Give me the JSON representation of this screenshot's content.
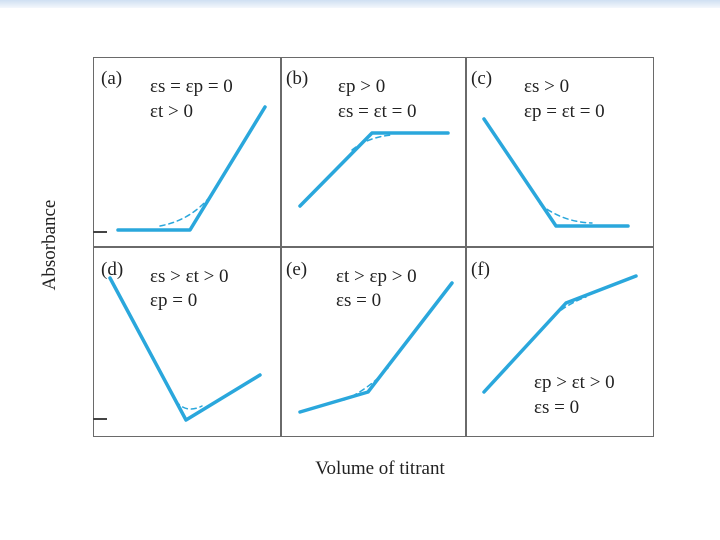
{
  "axes": {
    "ylabel": "Absorbance",
    "xlabel": "Volume of titrant"
  },
  "colors": {
    "curve": "#2aa7dc",
    "frame": "#6a6a6a",
    "top_band": "#cfe0f2"
  },
  "panels": [
    {
      "id": "a",
      "label": "(a)",
      "line1": "εs = εp = 0",
      "line2": "εt > 0"
    },
    {
      "id": "b",
      "label": "(b)",
      "line1": "εp > 0",
      "line2": "εs = εt = 0"
    },
    {
      "id": "c",
      "label": "(c)",
      "line1": "εs > 0",
      "line2": "εp = εt = 0"
    },
    {
      "id": "d",
      "label": "(d)",
      "line1": "εs > εt > 0",
      "line2": "εp = 0"
    },
    {
      "id": "e",
      "label": "(e)",
      "line1": "εt > εp > 0",
      "line2": "εs = 0"
    },
    {
      "id": "f",
      "label": "(f)",
      "line1": "εp > εt > 0",
      "line2": "εs = 0"
    }
  ]
}
